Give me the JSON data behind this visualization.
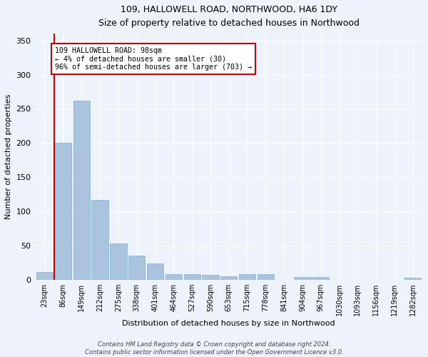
{
  "title": "109, HALLOWELL ROAD, NORTHWOOD, HA6 1DY",
  "subtitle": "Size of property relative to detached houses in Northwood",
  "xlabel": "Distribution of detached houses by size in Northwood",
  "ylabel": "Number of detached properties",
  "categories": [
    "23sqm",
    "86sqm",
    "149sqm",
    "212sqm",
    "275sqm",
    "338sqm",
    "401sqm",
    "464sqm",
    "527sqm",
    "590sqm",
    "653sqm",
    "715sqm",
    "778sqm",
    "841sqm",
    "904sqm",
    "967sqm",
    "1030sqm",
    "1093sqm",
    "1156sqm",
    "1219sqm",
    "1282sqm"
  ],
  "values": [
    12,
    200,
    262,
    117,
    53,
    36,
    24,
    9,
    9,
    7,
    5,
    8,
    9,
    0,
    4,
    4,
    0,
    0,
    0,
    0,
    3
  ],
  "bar_color": "#aac4e0",
  "bar_edgecolor": "#8ab4d4",
  "vline_color": "#cc0000",
  "annotation_line1": "109 HALLOWELL ROAD: 98sqm",
  "annotation_line2": "← 4% of detached houses are smaller (30)",
  "annotation_line3": "96% of semi-detached houses are larger (703) →",
  "annotation_box_edgecolor": "#cc0000",
  "annotation_bg": "#ffffff",
  "footer1": "Contains HM Land Registry data © Crown copyright and database right 2024.",
  "footer2": "Contains public sector information licensed under the Open Government Licence v3.0.",
  "ylim": [
    0,
    360
  ],
  "yticks": [
    0,
    50,
    100,
    150,
    200,
    250,
    300,
    350
  ],
  "background_color": "#eef2fa",
  "grid_color": "#ffffff"
}
